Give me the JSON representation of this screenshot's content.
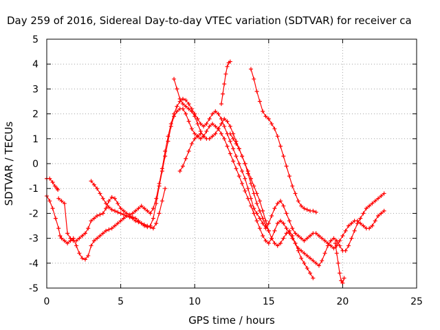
{
  "chart_data": {
    "type": "scatter",
    "title": "Day 259 of 2016, Sidereal Day-to-day VTEC variation (SDTVAR) for receiver ca",
    "xlabel": "GPS time / hours",
    "ylabel": "SDTVAR / TECUs",
    "xlim": [
      0,
      25
    ],
    "ylim": [
      -5,
      5
    ],
    "xticks": [
      "0",
      "5",
      "10",
      "15",
      "20",
      "25"
    ],
    "yticks": [
      "-5",
      "-4",
      "-3",
      "-2",
      "-1",
      "0",
      "1",
      "2",
      "3",
      "4",
      "5"
    ],
    "grid": true,
    "marker": "+",
    "color": "#ff0000",
    "series": [
      {
        "x": [
          0.0,
          0.2,
          0.4,
          0.55,
          0.7,
          0.75
        ],
        "y": [
          -0.6,
          -0.6,
          -0.75,
          -0.9,
          -1.0,
          -1.05
        ]
      },
      {
        "x": [
          0.0,
          0.2,
          0.4,
          0.6,
          0.8,
          0.9,
          1.0,
          1.2,
          1.4,
          1.6,
          1.8,
          2.0,
          2.2,
          2.4,
          2.6,
          2.8,
          3.0,
          3.2,
          3.4,
          3.6,
          3.8,
          4.0,
          4.2,
          4.4,
          4.6,
          4.8,
          5.0,
          5.2,
          5.4,
          5.6,
          5.8,
          6.0,
          6.2,
          6.4,
          6.6,
          6.8,
          7.0,
          7.2,
          7.4,
          7.6,
          7.8,
          8.0,
          8.2,
          8.4,
          8.6,
          8.8,
          9.0,
          9.2,
          9.4,
          9.6,
          9.8,
          10.0,
          10.2,
          10.4,
          10.6,
          10.8,
          11.0,
          11.2,
          11.4,
          11.6,
          11.8,
          12.0,
          12.2,
          12.4,
          12.6,
          12.8,
          13.0,
          13.2,
          13.4,
          13.6,
          13.8,
          14.0,
          14.2,
          14.4,
          14.6,
          14.8,
          15.0,
          15.2,
          15.4,
          15.6,
          15.8,
          16.0,
          16.2,
          16.4,
          16.6,
          16.8,
          17.0,
          17.2,
          17.4,
          17.6,
          17.8,
          18.0,
          18.2,
          18.4,
          18.6,
          18.8,
          19.0,
          19.2,
          19.4,
          19.6,
          19.8,
          20.0,
          20.2,
          20.4,
          20.6,
          20.8,
          21.0,
          21.2,
          21.4,
          21.6,
          21.8,
          22.0,
          22.2,
          22.4,
          22.6,
          22.8
        ],
        "y": [
          -1.3,
          -1.5,
          -1.8,
          -2.2,
          -2.6,
          -2.9,
          -3.0,
          -3.1,
          -3.2,
          -3.1,
          -3.0,
          -3.3,
          -3.6,
          -3.8,
          -3.85,
          -3.7,
          -3.3,
          -3.1,
          -3.0,
          -2.9,
          -2.8,
          -2.7,
          -2.65,
          -2.6,
          -2.5,
          -2.4,
          -2.3,
          -2.2,
          -2.1,
          -2.1,
          -2.15,
          -2.2,
          -2.3,
          -2.4,
          -2.5,
          -2.55,
          -2.5,
          -2.2,
          -1.6,
          -0.9,
          -0.3,
          0.3,
          0.9,
          1.5,
          1.9,
          2.1,
          2.2,
          2.2,
          2.0,
          1.7,
          1.4,
          1.2,
          1.1,
          1.0,
          1.1,
          1.3,
          1.5,
          1.6,
          1.5,
          1.4,
          1.2,
          1.0,
          0.7,
          0.4,
          0.1,
          -0.2,
          -0.5,
          -0.8,
          -1.1,
          -1.4,
          -1.7,
          -2.0,
          -2.3,
          -2.6,
          -2.9,
          -3.1,
          -3.2,
          -3.0,
          -2.7,
          -2.4,
          -2.3,
          -2.4,
          -2.6,
          -2.8,
          -3.0,
          -3.2,
          -3.4,
          -3.5,
          -3.6,
          -3.7,
          -3.8,
          -3.9,
          -4.0,
          -4.1,
          -3.9,
          -3.6,
          -3.3,
          -3.1,
          -3.0,
          -3.1,
          -3.3,
          -3.5,
          -3.5,
          -3.3,
          -3.0,
          -2.7,
          -2.4,
          -2.2,
          -2.0,
          -1.8,
          -1.7,
          -1.6,
          -1.5,
          -1.4,
          -1.3,
          -1.2
        ]
      },
      {
        "x": [
          0.8,
          1.0,
          1.2,
          1.4,
          1.6,
          1.8,
          2.0,
          2.2,
          2.4,
          2.6,
          2.8,
          3.0,
          3.2,
          3.4,
          3.6,
          3.8,
          4.0,
          4.2,
          4.4,
          4.6,
          4.8,
          5.0,
          5.2,
          5.4,
          5.6,
          5.8,
          6.0,
          6.2,
          6.4,
          6.6,
          6.8,
          7.0,
          7.2,
          7.4,
          7.6,
          7.8,
          8.0,
          8.2,
          8.4,
          8.6,
          8.8,
          9.0,
          9.2,
          9.4,
          9.6,
          9.8,
          10.0,
          10.2,
          10.4,
          10.6,
          10.8,
          11.0,
          11.2,
          11.4,
          11.6,
          11.8,
          12.0,
          12.2,
          12.4,
          12.6,
          12.8,
          13.0,
          13.2,
          13.4,
          13.6,
          13.8,
          14.0,
          14.2,
          14.4,
          14.6,
          14.8,
          15.0,
          15.2,
          15.4,
          15.6,
          15.8,
          16.0,
          16.2,
          16.4,
          16.6,
          16.8,
          17.0,
          17.2,
          17.4,
          17.6,
          17.8,
          18.0,
          18.2,
          18.4,
          18.6,
          18.8,
          19.0,
          19.2,
          19.4,
          19.6,
          19.8,
          20.0,
          20.2,
          20.4,
          20.6,
          20.8,
          21.0,
          21.2,
          21.4,
          21.6,
          21.8,
          22.0,
          22.2,
          22.4,
          22.6,
          22.8
        ],
        "y": [
          -1.4,
          -1.5,
          -1.6,
          -2.8,
          -3.0,
          -3.1,
          -3.1,
          -3.0,
          -2.9,
          -2.8,
          -2.6,
          -2.3,
          -2.2,
          -2.1,
          -2.05,
          -2.0,
          -1.8,
          -1.5,
          -1.35,
          -1.4,
          -1.6,
          -1.8,
          -1.9,
          -2.0,
          -2.05,
          -2.0,
          -1.9,
          -1.8,
          -1.7,
          -1.8,
          -1.9,
          -2.0,
          -1.8,
          -1.4,
          -0.8,
          -0.2,
          0.5,
          1.1,
          1.6,
          2.0,
          2.3,
          2.5,
          2.6,
          2.55,
          2.4,
          2.2,
          2.0,
          1.8,
          1.6,
          1.5,
          1.6,
          1.8,
          2.0,
          2.1,
          2.0,
          1.8,
          1.5,
          1.2,
          0.9,
          0.6,
          0.3,
          0.0,
          -0.3,
          -0.6,
          -1.0,
          -1.4,
          -1.8,
          -2.0,
          -2.2,
          -2.4,
          -2.6,
          -2.4,
          -2.1,
          -1.8,
          -1.6,
          -1.5,
          -1.7,
          -2.0,
          -2.3,
          -2.6,
          -2.8,
          -2.9,
          -3.0,
          -3.1,
          -3.0,
          -2.9,
          -2.8,
          -2.8,
          -2.9,
          -3.0,
          -3.1,
          -3.2,
          -3.3,
          -3.4,
          -3.3,
          -3.1,
          -2.9,
          -2.7,
          -2.5,
          -2.4,
          -2.3,
          -2.3,
          -2.4,
          -2.5,
          -2.6,
          -2.6,
          -2.5,
          -2.3,
          -2.1,
          -2.0,
          -1.9
        ]
      },
      {
        "x": [
          3.0,
          3.2,
          3.4,
          3.6,
          3.8,
          4.0,
          4.2,
          4.4,
          4.6,
          4.8,
          5.0,
          5.2,
          5.4,
          5.6,
          5.8,
          6.0,
          6.2,
          6.4,
          6.6,
          6.8,
          7.0,
          7.2,
          7.4,
          7.6,
          7.8,
          8.0
        ],
        "y": [
          -0.7,
          -0.85,
          -1.0,
          -1.2,
          -1.4,
          -1.6,
          -1.75,
          -1.85,
          -1.9,
          -1.95,
          -2.0,
          -2.05,
          -2.1,
          -2.15,
          -2.2,
          -2.3,
          -2.35,
          -2.4,
          -2.45,
          -2.5,
          -2.55,
          -2.6,
          -2.4,
          -2.0,
          -1.5,
          -1.0
        ]
      },
      {
        "x": [
          8.6,
          8.8,
          9.0,
          9.2,
          9.4,
          9.6,
          9.8,
          10.0,
          10.2,
          10.4,
          10.6,
          10.8,
          11.0,
          11.2,
          11.4,
          11.6,
          11.8,
          12.0,
          12.2,
          12.4,
          12.6,
          12.8,
          13.0,
          13.2,
          13.4,
          13.6,
          13.8,
          14.0,
          14.2,
          14.4,
          14.6,
          14.8,
          15.0
        ],
        "y": [
          3.4,
          3.0,
          2.6,
          2.4,
          2.3,
          2.2,
          2.1,
          1.9,
          1.6,
          1.3,
          1.1,
          1.0,
          1.0,
          1.1,
          1.2,
          1.4,
          1.6,
          1.8,
          1.7,
          1.5,
          1.2,
          0.9,
          0.6,
          0.3,
          0.0,
          -0.4,
          -0.8,
          -1.2,
          -1.6,
          -1.9,
          -2.2,
          -2.5,
          -2.7
        ]
      },
      {
        "x": [
          9.0,
          9.2,
          9.4,
          9.6,
          9.8,
          10.0,
          10.2,
          10.4
        ],
        "y": [
          -0.3,
          -0.1,
          0.2,
          0.5,
          0.8,
          1.0,
          1.1,
          1.2
        ]
      },
      {
        "x": [
          11.8,
          11.9,
          12.0,
          12.1,
          12.2,
          12.3,
          12.4
        ],
        "y": [
          2.4,
          2.8,
          3.2,
          3.6,
          3.9,
          4.05,
          4.1
        ]
      },
      {
        "x": [
          13.8,
          14.0,
          14.2,
          14.4,
          14.6,
          14.8,
          15.0,
          15.2,
          15.4,
          15.6,
          15.8,
          16.0,
          16.2,
          16.4,
          16.6,
          16.8,
          17.0,
          17.2,
          17.4,
          17.6,
          17.8,
          18.0,
          18.2
        ],
        "y": [
          3.8,
          3.4,
          2.9,
          2.5,
          2.1,
          1.9,
          1.8,
          1.6,
          1.4,
          1.1,
          0.7,
          0.3,
          -0.1,
          -0.5,
          -0.9,
          -1.2,
          -1.5,
          -1.7,
          -1.8,
          -1.85,
          -1.9,
          -1.9,
          -1.95
        ]
      },
      {
        "x": [
          12.4,
          12.6,
          12.8,
          13.0,
          13.2,
          13.4,
          13.6,
          13.8,
          14.0,
          14.2,
          14.4,
          14.6,
          14.8,
          15.0,
          15.2,
          15.4,
          15.6,
          15.8,
          16.0,
          16.2,
          16.4,
          16.6,
          16.8,
          17.0,
          17.2,
          17.4,
          17.6,
          17.8,
          18.0
        ],
        "y": [
          1.2,
          1.0,
          0.8,
          0.6,
          0.3,
          0.0,
          -0.3,
          -0.6,
          -0.9,
          -1.2,
          -1.5,
          -1.9,
          -2.3,
          -2.7,
          -3.0,
          -3.2,
          -3.3,
          -3.2,
          -3.0,
          -2.8,
          -2.7,
          -2.9,
          -3.2,
          -3.5,
          -3.8,
          -4.0,
          -4.2,
          -4.4,
          -4.6
        ]
      },
      {
        "x": [
          19.5,
          19.6,
          19.7,
          19.8,
          19.9,
          20.0,
          20.1
        ],
        "y": [
          -3.2,
          -3.6,
          -4.0,
          -4.4,
          -4.7,
          -4.8,
          -4.6
        ]
      }
    ]
  }
}
